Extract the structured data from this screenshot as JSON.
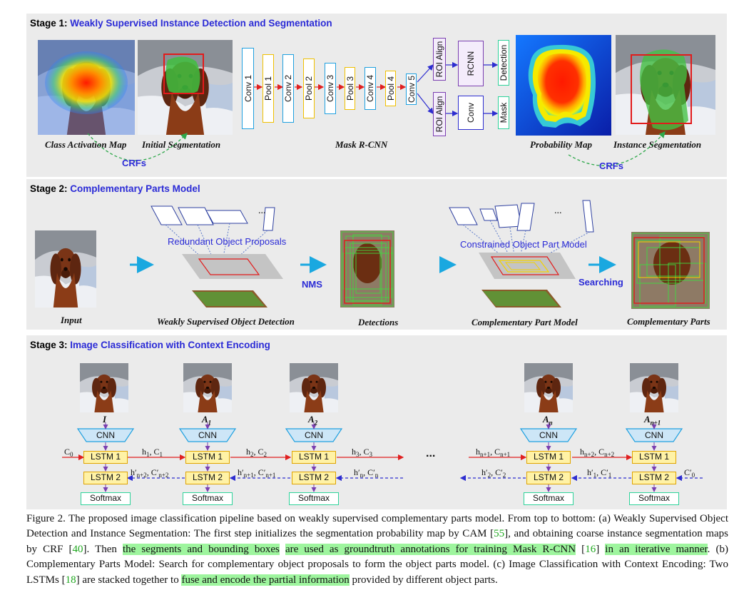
{
  "stage1": {
    "prefix": "Stage 1:",
    "title": "Weakly Supervised Instance Detection and Segmentation",
    "labels": {
      "cam": "Class Activation Map",
      "initseg": "Initial Segmentation",
      "maskrcnn": "Mask R-CNN",
      "prob": "Probability Map",
      "instseg": "Instance Segmentation",
      "crfs": "CRFs"
    },
    "layers": [
      "Conv 1",
      "Pool 1",
      "Conv 2",
      "Pool 2",
      "Conv 3",
      "Pool 3",
      "Conv 4",
      "Pool 4",
      "Conv 5"
    ],
    "heads": {
      "roi_align": "ROI Align",
      "rcnn": "RCNN",
      "detection": "Detection",
      "conv": "Conv",
      "mask": "Mask"
    }
  },
  "stage2": {
    "prefix": "Stage 2:",
    "title": "Complementary Parts Model",
    "labels": {
      "input": "Input",
      "wsod": "Weakly Supervised Object Detection",
      "detections": "Detections",
      "cpm": "Complementary Part Model",
      "parts": "Complementary Parts"
    },
    "annotations": {
      "proposals": "Redundant Object Proposals",
      "constrained": "Constrained Object Part Model",
      "nms": "NMS",
      "searching": "Searching",
      "ellipsis": "..."
    }
  },
  "stage3": {
    "prefix": "Stage 3:",
    "title": "Image Classification with Context Encoding",
    "cnn": "CNN",
    "lstm1": "LSTM 1",
    "lstm2": "LSTM 2",
    "softmax": "Softmax",
    "ellipsis": "...",
    "columns": [
      {
        "label": "I"
      },
      {
        "label": "A",
        "sub": "1"
      },
      {
        "label": "A",
        "sub": "2"
      },
      {
        "label": "A",
        "sub": "n"
      },
      {
        "label": "A",
        "sub": "n+1"
      }
    ]
  },
  "caption": {
    "p1": "Figure 2. The proposed image classification pipeline based on weakly supervised complementary parts model. From top to bottom: (a) Weakly Supervised Object Detection and Instance Segmentation: The first step initializes the segmentation probability map by CAM [",
    "r55": "55",
    "p2": "], and obtaining coarse instance segmentation maps by CRF [",
    "r40": "40",
    "p3": "]. Then ",
    "h1": "the segments and bounding boxes",
    "p4": " ",
    "h2": "are used as groundtruth annotations for training Mask R-CNN",
    "p5": " [",
    "r16": "16",
    "p6": "] ",
    "h3": "in an iterative manner",
    "p7": ". (b) Complementary Parts Model: Search for complementary object proposals to form the object parts model. (c) Image Classification with Context Encoding: Two LSTMs [",
    "r18": "18",
    "p8": "] are stacked together to ",
    "h4": "fuse and encode the partial information",
    "p9": " provided by different object parts."
  },
  "colors": {
    "panel": "#ebebeb",
    "stage_blue": "#2b2bd6",
    "conv_blue": "#1fa0e0",
    "pool_yellow": "#f0c000",
    "roi_purple": "#7a3fb0",
    "highlight": "#9ef59e",
    "arrow_red": "#e02020",
    "arrow_cyan": "#1aa8e0"
  }
}
